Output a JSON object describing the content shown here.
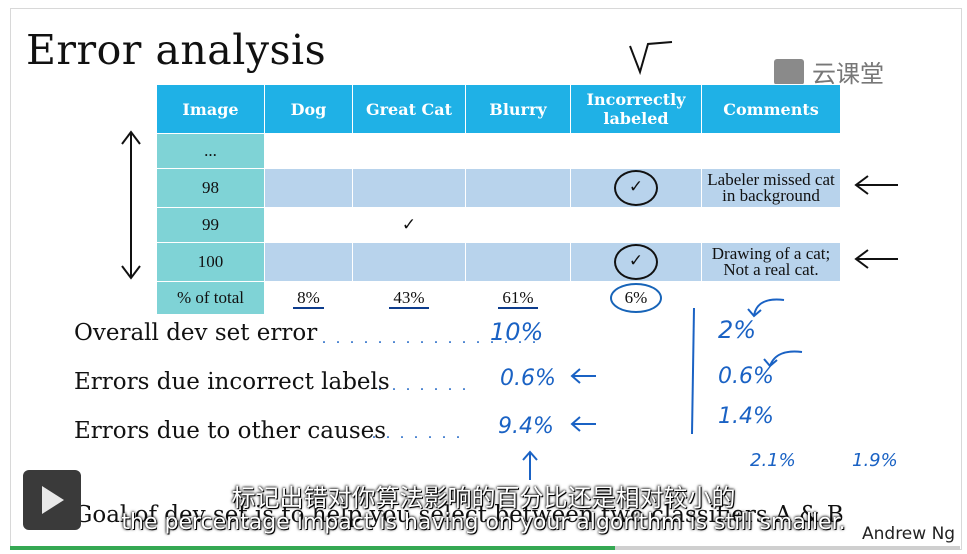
{
  "slide": {
    "title": "Error analysis",
    "logo_text": "云课堂",
    "author": "Andrew Ng"
  },
  "table": {
    "headers": [
      "Image",
      "Dog",
      "Great Cat",
      "Blurry",
      "Incorrectly labeled",
      "Comments"
    ],
    "rows": [
      {
        "image": "...",
        "dog": "",
        "great_cat": "",
        "blurry": "",
        "incorrect": "",
        "comment": ""
      },
      {
        "image": "98",
        "dog": "",
        "great_cat": "",
        "blurry": "",
        "incorrect": "✓",
        "comment": "Labeler missed cat in background"
      },
      {
        "image": "99",
        "dog": "",
        "great_cat": "✓",
        "blurry": "",
        "incorrect": "",
        "comment": ""
      },
      {
        "image": "100",
        "dog": "",
        "great_cat": "",
        "blurry": "",
        "incorrect": "✓",
        "comment": "Drawing of a cat; Not a real cat."
      }
    ],
    "totals": {
      "label": "% of total",
      "dog": "8%",
      "great_cat": "43%",
      "blurry": "61%",
      "incorrect": "6%"
    }
  },
  "errors": {
    "overall_label": "Overall dev set error",
    "incorrect_label": "Errors due incorrect labels",
    "other_label": "Errors due to other causes",
    "col1": {
      "overall": "10%",
      "incorrect": "0.6%",
      "other": "9.4%"
    },
    "col2": {
      "overall": "2%",
      "incorrect": "0.6%",
      "other": "1.4%"
    },
    "extra_left": "2.1%",
    "extra_right": "1.9%"
  },
  "goal_text": "Goal of dev set is to help you select between two classifiers A & B",
  "subtitles": {
    "zh": "标记出错对你算法影响的百分比还是相对较小的",
    "en": "the percentage impact is having on your algorithm is still smaller."
  },
  "player": {
    "play_icon": "play-icon",
    "progress": 0.63,
    "progress_color": "#35a853"
  },
  "colors": {
    "header": "#1fb1e6",
    "row_shade": "#b8d3ec",
    "row_head": "#7fd3d6",
    "ink": "#1a62c4"
  }
}
